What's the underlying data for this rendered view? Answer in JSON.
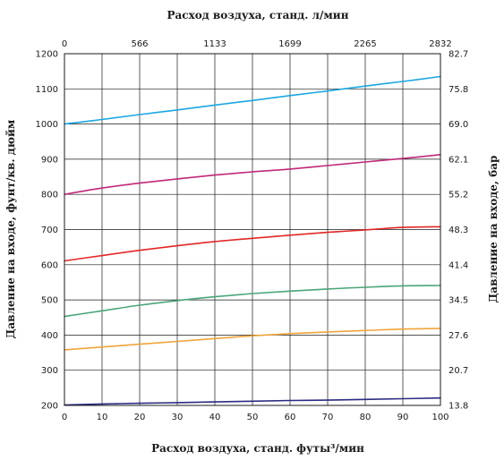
{
  "chart_data": {
    "type": "line",
    "title": "",
    "top_axis_title": "Расход воздуха, станд. л/мин",
    "xlabel": "Расход воздуха, станд. футы³/мин",
    "ylabel": "Давление на входе, фунт/кв. дюйм",
    "y2label": "Давление на входе, бар",
    "xlim": [
      0,
      100
    ],
    "ylim": [
      200,
      1200
    ],
    "x_ticks": [
      "0",
      "10",
      "20",
      "30",
      "40",
      "50",
      "60",
      "70",
      "80",
      "90",
      "100"
    ],
    "x_top_ticks": [
      "0",
      "566",
      "1133",
      "1699",
      "2265",
      "2832"
    ],
    "y_ticks": [
      "200",
      "300",
      "400",
      "500",
      "600",
      "700",
      "800",
      "900",
      "1000",
      "1100",
      "1200"
    ],
    "y2_ticks": [
      "13.8",
      "20.7",
      "27.6",
      "34.5",
      "41.4",
      "48.3",
      "55.2",
      "62.1",
      "69.0",
      "75.8",
      "82.7"
    ],
    "grid": true,
    "legend": "none",
    "x": [
      0,
      10,
      20,
      30,
      40,
      50,
      60,
      70,
      80,
      90,
      100
    ],
    "series": [
      {
        "color": "#1ba6e0",
        "values": [
          1000,
          1013,
          1027,
          1040,
          1054,
          1067,
          1081,
          1094,
          1108,
          1121,
          1135
        ]
      },
      {
        "color": "#c0287a",
        "values": [
          800,
          818,
          832,
          844,
          855,
          864,
          872,
          882,
          892,
          902,
          913
        ]
      },
      {
        "color": "#e02826",
        "values": [
          611,
          626,
          641,
          654,
          666,
          675,
          684,
          692,
          699,
          706,
          708
        ]
      },
      {
        "color": "#4aa57a",
        "values": [
          453,
          469,
          485,
          498,
          509,
          518,
          525,
          531,
          536,
          540,
          541
        ]
      },
      {
        "color": "#f0a43c",
        "values": [
          358,
          366,
          374,
          382,
          390,
          398,
          404,
          409,
          413,
          417,
          419
        ]
      },
      {
        "color": "#2b2a82",
        "values": [
          201,
          204,
          206,
          208,
          210,
          212,
          214,
          215,
          217,
          219,
          221
        ]
      }
    ]
  }
}
